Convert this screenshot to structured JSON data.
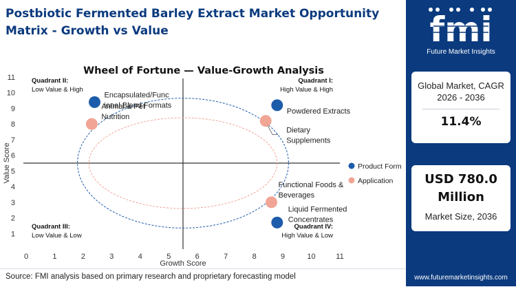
{
  "page": {
    "title": "Postbiotic Fermented Barley Extract Market Opportunity Matrix - Growth vs Value",
    "source": "Source: FMI analysis based on primary research and proprietary forecasting model"
  },
  "sidebar": {
    "logo_text": "fmi",
    "logo_subtitle": "Future Market Insights",
    "cagr_label": "Global Market, CAGR 2026 - 2036",
    "cagr_value": "11.4%",
    "size_value": "USD 780.0 Million",
    "size_label": "Market Size, 2036",
    "website": "www.futuremarketinsights.com"
  },
  "colors": {
    "brand": "#0b3a7e",
    "product_form": "#1d5cab",
    "application": "#f0a595",
    "axis": "#333333"
  },
  "chart_data": {
    "type": "scatter",
    "title": "Wheel of Fortune — Value-Growth Analysis",
    "xlabel": "Growth Score",
    "ylabel": "Value Score",
    "xlim": [
      0,
      11
    ],
    "ylim": [
      0,
      11
    ],
    "xticks": [
      0,
      1,
      2,
      3,
      4,
      5,
      6,
      7,
      8,
      9,
      10,
      11
    ],
    "yticks": [
      1,
      2,
      3,
      4,
      5,
      6,
      7,
      8,
      9,
      10,
      11
    ],
    "divider_x": 5.5,
    "divider_y": 5.5,
    "legend_position": "right",
    "quadrants": [
      {
        "title": "Quadrant II:",
        "subtitle": "Low Value & High"
      },
      {
        "title": "Quadrant I:",
        "subtitle": "High Value & High"
      },
      {
        "title": "Quadrant III:",
        "subtitle": "Low Value & Low"
      },
      {
        "title": "Quadrant IV:",
        "subtitle": "High Value & Low"
      }
    ],
    "series": [
      {
        "name": "Product Form",
        "color": "#1d5cab",
        "points": [
          {
            "label": "Encapsulated/Functional Blend Formats",
            "x": 2.4,
            "y": 9.4,
            "label_lines": [
              "Encapsulated/Func",
              "ional Blend Formats"
            ]
          },
          {
            "label": "Powdered Extracts",
            "x": 8.8,
            "y": 9.2,
            "label_lines": [
              "Powdered Extracts"
            ]
          },
          {
            "label": "Liquid Fermented Concentrates",
            "x": 8.8,
            "y": 1.7,
            "label_lines": [
              "Liquid Fermented",
              "Concentrates"
            ]
          }
        ]
      },
      {
        "name": "Application",
        "color": "#f0a595",
        "points": [
          {
            "label": "Animal & Pet Nutrition",
            "x": 2.3,
            "y": 8.0,
            "label_lines": [
              "Animal & Pet",
              "Nutrition"
            ]
          },
          {
            "label": "Dietary Supplements",
            "x": 8.4,
            "y": 8.2,
            "label_lines": [
              "Dietary",
              "Supplements"
            ]
          },
          {
            "label": "Functional Foods & Beverages",
            "x": 8.6,
            "y": 3.0,
            "label_lines": [
              "Functional Foods &",
              "Beverages"
            ]
          }
        ]
      }
    ]
  }
}
